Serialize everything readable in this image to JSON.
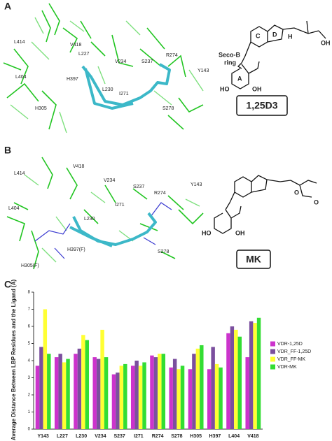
{
  "panels": [
    {
      "letter": "A",
      "compound": "1,25D3",
      "residues": [
        "L414",
        "V418",
        "L227",
        "L404",
        "H397",
        "V234",
        "S237",
        "R274",
        "Y143",
        "L230",
        "I271",
        "H305",
        "S278"
      ],
      "structure_labels": [
        "C",
        "D",
        "H",
        "Seco-B",
        "ring",
        "A",
        "HO",
        "OH",
        "OH"
      ]
    },
    {
      "letter": "B",
      "compound": "MK",
      "residues": [
        "L414",
        "V418",
        "V234",
        "S237",
        "R274",
        "Y143",
        "L404",
        "I271",
        "L230",
        "H397(F)",
        "H305(F)",
        "S278"
      ],
      "structure_labels": [
        "HO",
        "OH",
        "O",
        "O"
      ]
    }
  ],
  "panel_c": {
    "letter": "C"
  },
  "chart_data": {
    "type": "bar",
    "y_label": "Average Distance Between LBP Residues and the Ligand (Å)",
    "categories": [
      "Y143",
      "L227",
      "L230",
      "V234",
      "S237",
      "I271",
      "R274",
      "S278",
      "H305",
      "H397",
      "L404",
      "V418"
    ],
    "series": [
      {
        "name": "VDR-1,25D",
        "color": "#cc33cc",
        "values": [
          3.7,
          4.2,
          4.4,
          4.2,
          3.2,
          3.7,
          4.3,
          3.6,
          3.5,
          3.5,
          5.6,
          4.2
        ]
      },
      {
        "name": "VDR_FF-1,25D",
        "color": "#7b4f9e",
        "values": [
          4.8,
          4.4,
          4.7,
          4.1,
          3.3,
          4.0,
          4.2,
          4.1,
          4.4,
          4.8,
          6.0,
          6.3
        ]
      },
      {
        "name": "VDR_FF-MK",
        "color": "#ffff33",
        "values": [
          7.0,
          3.9,
          5.5,
          5.8,
          3.7,
          3.7,
          4.4,
          3.5,
          4.7,
          3.8,
          5.8,
          6.2
        ]
      },
      {
        "name": "VDR-MK",
        "color": "#33dd33",
        "values": [
          4.4,
          4.1,
          5.2,
          4.2,
          3.8,
          3.9,
          4.4,
          3.7,
          4.9,
          3.6,
          5.4,
          6.5
        ]
      }
    ],
    "ylim": [
      0,
      8
    ],
    "yticks": [
      0,
      1,
      2,
      3,
      4,
      5,
      6,
      7,
      8
    ],
    "legend": "right"
  }
}
